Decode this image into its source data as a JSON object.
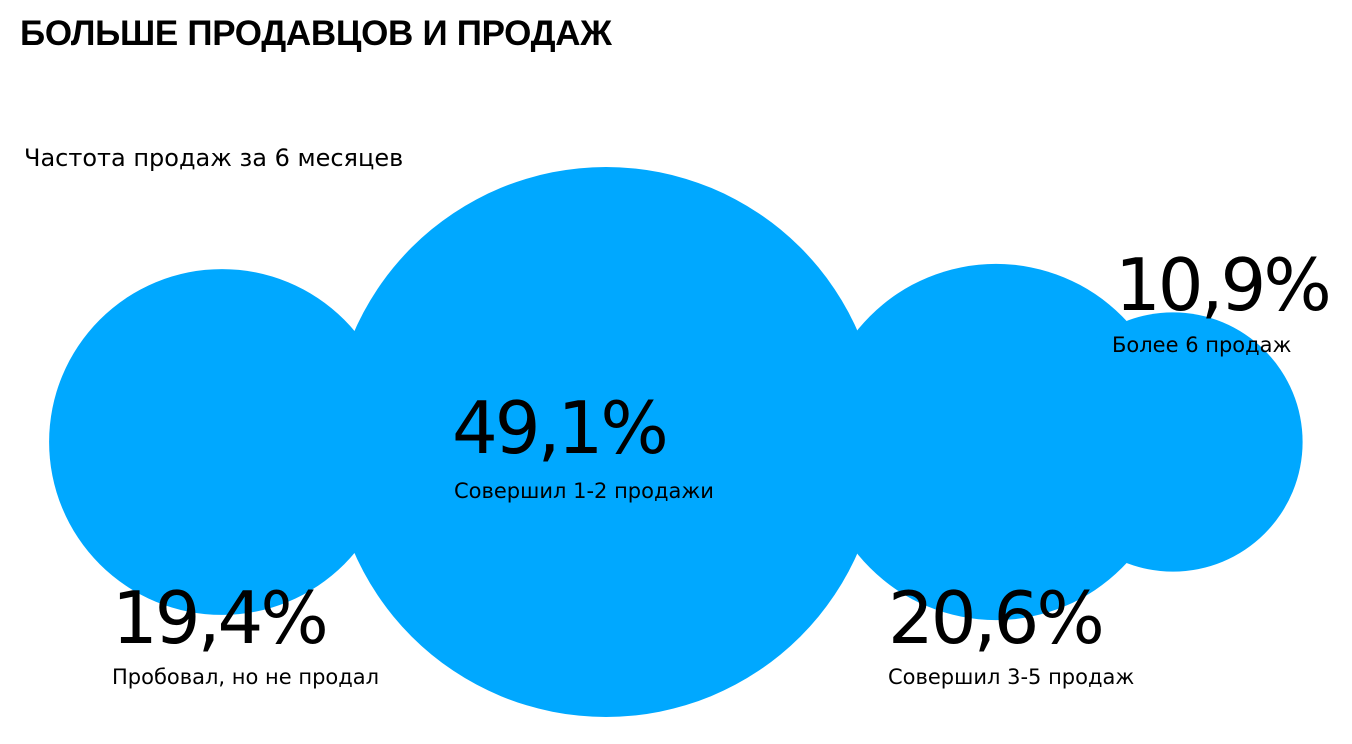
{
  "header": {
    "title": "БОЛЬШЕ ПРОДАВЦОВ И ПРОДАЖ"
  },
  "chart_data": {
    "type": "bubble",
    "title": "Частота продаж за 6 месяцев",
    "color": "#00A8FF",
    "series": [
      {
        "name": "Пробовал, но не продал",
        "value": 19.4,
        "value_label": "19,4%"
      },
      {
        "name": "Совершил 1-2 продажи",
        "value": 49.1,
        "value_label": "49,1%"
      },
      {
        "name": "Совершил 3-5 продаж",
        "value": 20.6,
        "value_label": "20,6%"
      },
      {
        "name": "Более 6 продаж",
        "value": 10.9,
        "value_label": "10,9%"
      }
    ]
  }
}
